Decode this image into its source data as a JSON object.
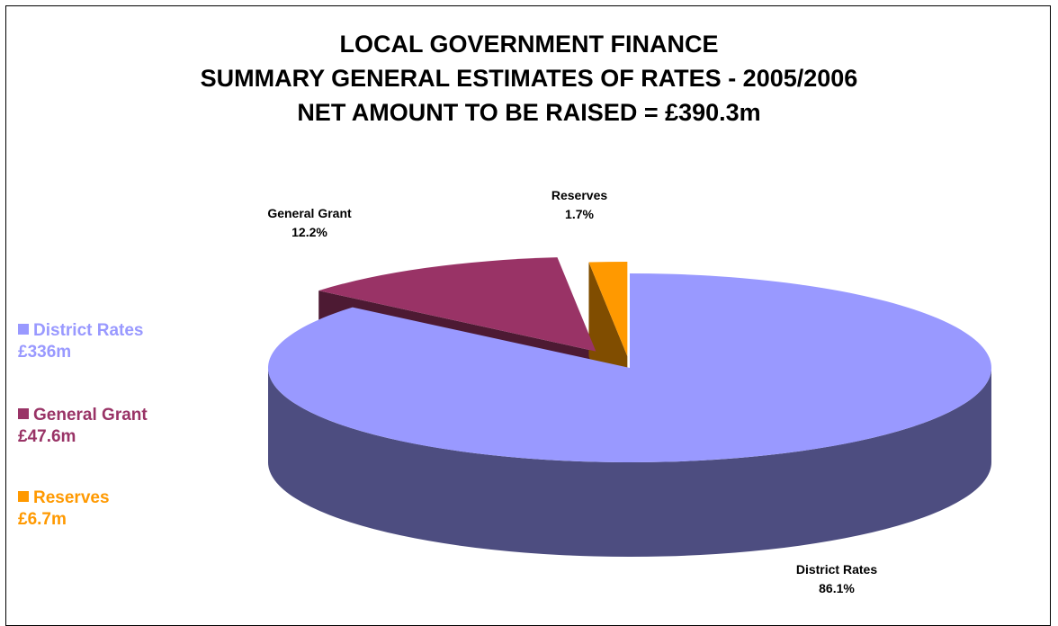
{
  "title_lines": [
    "LOCAL GOVERNMENT FINANCE",
    "SUMMARY GENERAL ESTIMATES OF RATES - 2005/2006",
    "NET AMOUNT TO BE RAISED = £390.3m"
  ],
  "chart_data": {
    "type": "pie",
    "style": "3d-exploded",
    "title": "LOCAL GOVERNMENT FINANCE / SUMMARY GENERAL ESTIMATES OF RATES - 2005/2006 / NET AMOUNT TO BE RAISED = £390.3m",
    "legend_position": "left",
    "slices": [
      {
        "name": "District Rates",
        "amount": "£336m",
        "percent_label": "86.1%",
        "percent": 86.1,
        "color": "#9999FF",
        "side_color": "#4D4D80"
      },
      {
        "name": "General Grant",
        "amount": "£47.6m",
        "percent_label": "12.2%",
        "percent": 12.2,
        "color": "#993366",
        "side_color": "#4D1A33"
      },
      {
        "name": "Reserves",
        "amount": "£6.7m",
        "percent_label": "1.7%",
        "percent": 1.7,
        "color": "#FF9900",
        "side_color": "#804D00"
      }
    ]
  }
}
